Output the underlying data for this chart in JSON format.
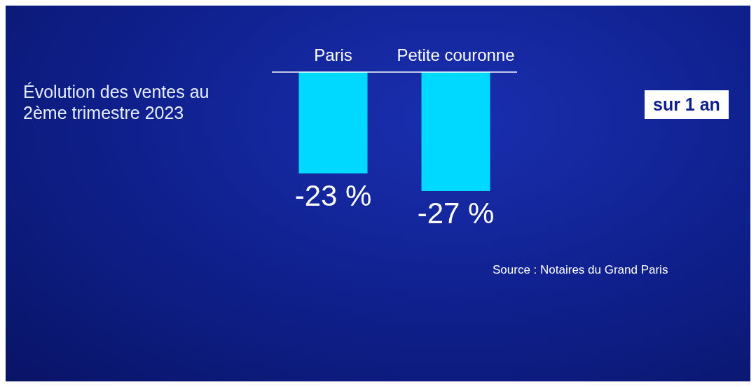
{
  "chart_data": {
    "type": "bar",
    "title": "Évolution des ventes au 2ème trimestre 2023",
    "categories": [
      "Paris",
      "Petite couronne"
    ],
    "values": [
      -23,
      -27
    ],
    "value_labels": [
      "-23 %",
      "-27 %"
    ],
    "color": "#00d9ff",
    "annotations": [
      "sur 1 an",
      "Source : Notaires du Grand Paris"
    ]
  }
}
